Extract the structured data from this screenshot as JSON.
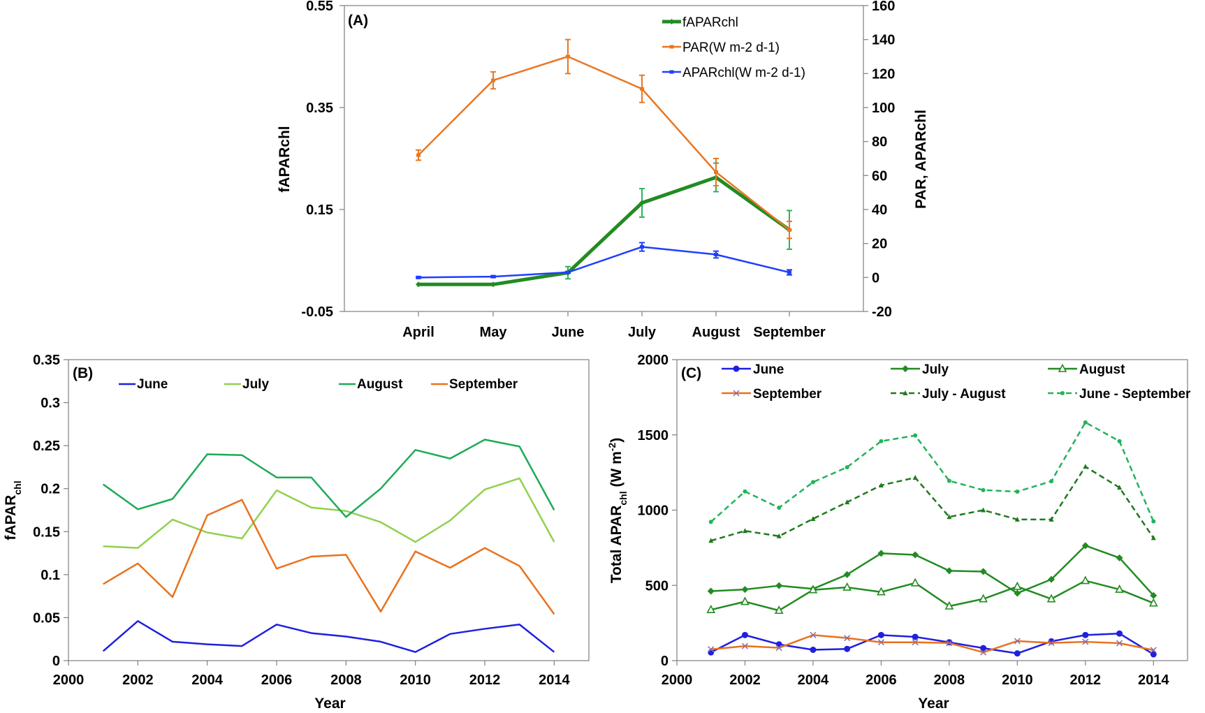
{
  "chart_data": [
    {
      "panel": "A",
      "type": "line",
      "panel_label": "(A)",
      "categories": [
        "April",
        "May",
        "June",
        "July",
        "August",
        "September"
      ],
      "y_label": "fAPARchl",
      "y2_label": "PAR, APARchl",
      "y_ticks": [
        "0.55",
        "0.35",
        "0.15",
        "-0.05"
      ],
      "y2_ticks": [
        "160",
        "140",
        "120",
        "100",
        "80",
        "60",
        "40",
        "20",
        "0",
        "-20"
      ],
      "ylim": [
        -0.05,
        0.55
      ],
      "y2lim": [
        -20,
        160
      ],
      "series": [
        {
          "name": "fAPARchl",
          "axis": "left",
          "color": "#228B22",
          "width": 5,
          "values": [
            0.003,
            0.003,
            0.026,
            0.163,
            0.213,
            0.11
          ],
          "errors": [
            0.0,
            0.0,
            0.012,
            0.028,
            0.028,
            0.038
          ]
        },
        {
          "name": "PAR(W m-2 d-1)",
          "axis": "right",
          "color": "#E87722",
          "width": 2.5,
          "values": [
            72,
            116,
            130,
            111,
            62,
            28
          ],
          "errors": [
            3,
            5,
            10,
            8,
            8,
            5
          ]
        },
        {
          "name": "APARchl(W m-2 d-1)",
          "axis": "right",
          "color": "#1F3FFF",
          "width": 2.5,
          "values": [
            0,
            0.5,
            3,
            18,
            13.5,
            3
          ],
          "errors": [
            0.5,
            0.5,
            0.5,
            2.5,
            2,
            1.5
          ]
        }
      ]
    },
    {
      "panel": "B",
      "type": "line",
      "panel_label": "(B)",
      "x": [
        2001,
        2002,
        2003,
        2004,
        2005,
        2006,
        2007,
        2008,
        2009,
        2010,
        2011,
        2012,
        2013,
        2014
      ],
      "x_ticks": [
        "2000",
        "2002",
        "2004",
        "2006",
        "2008",
        "2010",
        "2012",
        "2014"
      ],
      "xlim": [
        2000,
        2015
      ],
      "y_ticks": [
        "0.35",
        "0.3",
        "0.25",
        "0.2",
        "0.15",
        "0.1",
        "0.05",
        "0"
      ],
      "ylim": [
        0,
        0.35
      ],
      "xlabel": "Year",
      "ylabel": "fAPAR",
      "ylabel_sub": "chl",
      "series": [
        {
          "name": "June",
          "color": "#1F1FE0",
          "values": [
            0.011,
            0.046,
            0.022,
            0.019,
            0.017,
            0.042,
            0.032,
            0.028,
            0.022,
            0.01,
            0.031,
            0.037,
            0.042,
            0.01
          ]
        },
        {
          "name": "July",
          "color": "#8FD14F",
          "values": [
            0.133,
            0.131,
            0.164,
            0.149,
            0.142,
            0.198,
            0.178,
            0.174,
            0.161,
            0.138,
            0.163,
            0.199,
            0.212,
            0.138
          ]
        },
        {
          "name": "August",
          "color": "#1EAB55",
          "values": [
            0.205,
            0.176,
            0.188,
            0.24,
            0.239,
            0.213,
            0.213,
            0.167,
            0.2,
            0.245,
            0.235,
            0.257,
            0.249,
            0.175
          ]
        },
        {
          "name": "September",
          "color": "#E8721E",
          "values": [
            0.089,
            0.113,
            0.074,
            0.169,
            0.187,
            0.107,
            0.121,
            0.123,
            0.057,
            0.127,
            0.108,
            0.131,
            0.11,
            0.054
          ]
        }
      ]
    },
    {
      "panel": "C",
      "type": "line",
      "panel_label": "(C)",
      "x": [
        2001,
        2002,
        2003,
        2004,
        2005,
        2006,
        2007,
        2008,
        2009,
        2010,
        2011,
        2012,
        2013,
        2014
      ],
      "x_ticks": [
        "2000",
        "2002",
        "2004",
        "2006",
        "2008",
        "2010",
        "2012",
        "2014"
      ],
      "xlim": [
        2000,
        2015
      ],
      "y_ticks": [
        "2000",
        "1500",
        "1000",
        "500",
        "0"
      ],
      "ylim": [
        0,
        2000
      ],
      "xlabel": "Year",
      "ylabel": "Total APAR",
      "ylabel_sub": "chl",
      "ylabel_unit": " (W m",
      "ylabel_sup": "-2",
      "ylabel_end": ")",
      "series": [
        {
          "name": "June",
          "color": "#1F1FE0",
          "marker": "circle",
          "dash": "",
          "values": [
            55,
            170,
            108,
            72,
            78,
            170,
            158,
            122,
            83,
            48,
            128,
            170,
            180,
            42
          ]
        },
        {
          "name": "July",
          "color": "#228B22",
          "marker": "diamond",
          "dash": "",
          "values": [
            462,
            473,
            498,
            477,
            572,
            713,
            703,
            597,
            592,
            448,
            540,
            764,
            683,
            433
          ]
        },
        {
          "name": "August",
          "color": "#228B22",
          "marker": "triangle",
          "dash": "",
          "values": [
            338,
            392,
            333,
            470,
            487,
            456,
            516,
            362,
            410,
            492,
            410,
            531,
            473,
            382
          ]
        },
        {
          "name": "September",
          "color": "#E8721E",
          "marker": "x",
          "dash": "",
          "values": [
            75,
            97,
            85,
            170,
            150,
            122,
            122,
            117,
            55,
            130,
            118,
            125,
            116,
            70
          ]
        },
        {
          "name": "July - August",
          "color": "#1E7A1E",
          "marker": "triangle-small",
          "dash": "8,5",
          "values": [
            797,
            862,
            827,
            942,
            1053,
            1165,
            1216,
            955,
            1000,
            938,
            938,
            1289,
            1150,
            815
          ]
        },
        {
          "name": "June - September",
          "color": "#22B35A",
          "marker": "circle-small",
          "dash": "8,5",
          "values": [
            922,
            1124,
            1016,
            1186,
            1285,
            1458,
            1496,
            1195,
            1133,
            1123,
            1192,
            1583,
            1458,
            925
          ]
        }
      ]
    }
  ]
}
